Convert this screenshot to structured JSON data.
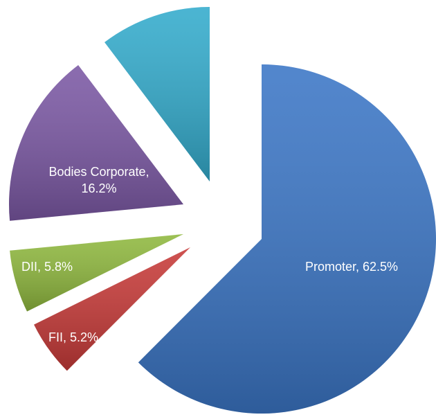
{
  "chart_data": {
    "type": "pie",
    "categories": [
      "Promoter",
      "FII",
      "DII",
      "Bodies Corporate",
      null
    ],
    "values": [
      62.5,
      5.2,
      5.8,
      16.2,
      10.3
    ],
    "value_labels": [
      "Promoter, 62.5%",
      "FII, 5.2%",
      "DII, 5.8%",
      "Bodies Corporate, 16.2%",
      null
    ],
    "colors": [
      "#3b76c6",
      "#c73a38",
      "#8fb83e",
      "#7b58a4",
      "#33abcc"
    ]
  }
}
